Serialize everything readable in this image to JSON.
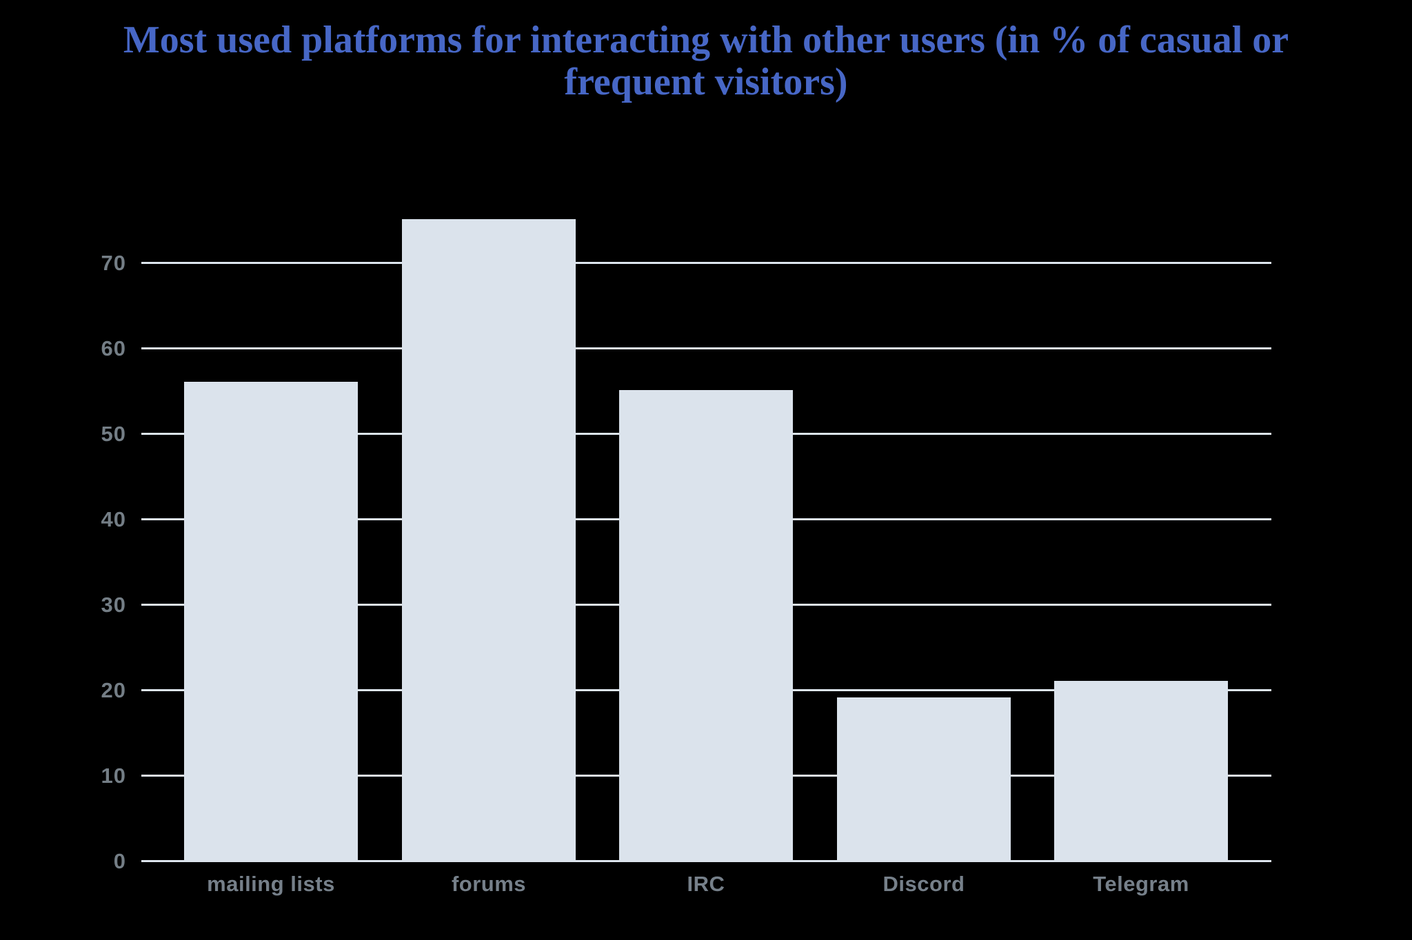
{
  "title": {
    "lines": [
      "Most used platforms for interacting with other users (in % of casual or",
      "frequent visitors)"
    ],
    "color": "#4767c6"
  },
  "chart_data": {
    "type": "bar",
    "title": "Most used platforms for interacting with other users (in % of casual or frequent visitors)",
    "categories": [
      "mailing lists",
      "forums",
      "IRC",
      "Discord",
      "Telegram"
    ],
    "values": [
      56,
      75,
      55,
      19,
      21
    ],
    "xlabel": "",
    "ylabel": "",
    "y_ticks": [
      0,
      10,
      20,
      30,
      40,
      50,
      60,
      70
    ],
    "ylim": [
      0,
      75
    ],
    "grid": true,
    "legend": false,
    "colors": {
      "background": "#000000",
      "bar_fill": "#dbe3ec",
      "gridline": "#dde5ee",
      "tick_label": "#747e86",
      "category_label": "#76808a"
    }
  }
}
